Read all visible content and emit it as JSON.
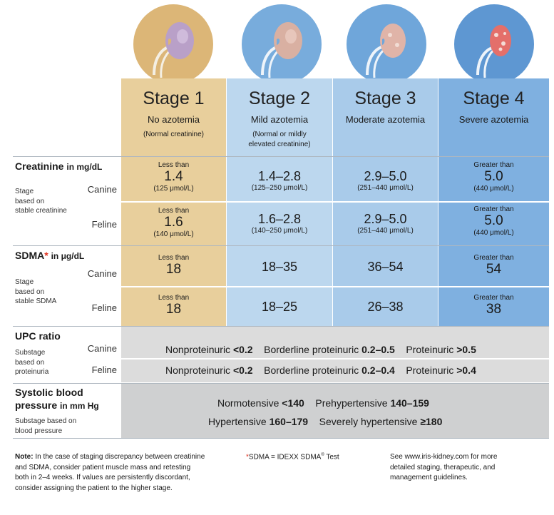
{
  "stages": [
    {
      "title": "Stage 1",
      "subtitle": "No azotemia",
      "note": "(Normal creatinine)"
    },
    {
      "title": "Stage 2",
      "subtitle": "Mild azotemia",
      "note": "(Normal or mildly elevated creatinine)"
    },
    {
      "title": "Stage 3",
      "subtitle": "Moderate azotemia",
      "note": ""
    },
    {
      "title": "Stage 4",
      "subtitle": "Severe azotemia",
      "note": ""
    }
  ],
  "creatinine": {
    "heading": "Creatinine",
    "unit": "in mg/dL",
    "sublabel_1": "Stage",
    "sublabel_2": "based on",
    "sublabel_3": "stable creatinine",
    "canine_label": "Canine",
    "feline_label": "Feline",
    "canine": [
      {
        "pre": "Less than",
        "value": "1.4",
        "unit": "(125 μmol/L)"
      },
      {
        "pre": "",
        "value": "1.4–2.8",
        "unit": "(125–250 μmol/L)"
      },
      {
        "pre": "",
        "value": "2.9–5.0",
        "unit": "(251–440 μmol/L)"
      },
      {
        "pre": "Greater than",
        "value": "5.0",
        "unit": "(440 μmol/L)"
      }
    ],
    "feline": [
      {
        "pre": "Less than",
        "value": "1.6",
        "unit": "(140 μmol/L)"
      },
      {
        "pre": "",
        "value": "1.6–2.8",
        "unit": "(140–250 μmol/L)"
      },
      {
        "pre": "",
        "value": "2.9–5.0",
        "unit": "(251–440 μmol/L)"
      },
      {
        "pre": "Greater than",
        "value": "5.0",
        "unit": "(440 μmol/L)"
      }
    ]
  },
  "sdma": {
    "heading": "SDMA",
    "asterisk": "*",
    "unit": "in μg/dL",
    "sublabel_1": "Stage",
    "sublabel_2": "based on",
    "sublabel_3": "stable SDMA",
    "canine_label": "Canine",
    "feline_label": "Feline",
    "canine": [
      {
        "pre": "Less than",
        "value": "18"
      },
      {
        "pre": "",
        "value": "18–35"
      },
      {
        "pre": "",
        "value": "36–54"
      },
      {
        "pre": "Greater than",
        "value": "54"
      }
    ],
    "feline": [
      {
        "pre": "Less than",
        "value": "18"
      },
      {
        "pre": "",
        "value": "18–25"
      },
      {
        "pre": "",
        "value": "26–38"
      },
      {
        "pre": "Greater than",
        "value": "38"
      }
    ]
  },
  "upc": {
    "heading": "UPC ratio",
    "sublabel_1": "Substage",
    "sublabel_2": "based on",
    "sublabel_3": "proteinuria",
    "canine_label": "Canine",
    "feline_label": "Feline",
    "canine": {
      "nonpro": "Nonproteinuric",
      "nonpro_val": "<0.2",
      "border": "Borderline proteinuric",
      "border_val": "0.2–0.5",
      "pro": "Proteinuric",
      "pro_val": ">0.5"
    },
    "feline": {
      "nonpro": "Nonproteinuric",
      "nonpro_val": "<0.2",
      "border": "Borderline proteinuric",
      "border_val": "0.2–0.4",
      "pro": "Proteinuric",
      "pro_val": ">0.4"
    }
  },
  "bp": {
    "heading_1": "Systolic blood",
    "heading_2": "pressure",
    "heading_unit": "in mm Hg",
    "sublabel_1": "Substage based on",
    "sublabel_2": "blood pressure",
    "normo": "Normotensive",
    "normo_val": "<140",
    "prehyper": "Prehypertensive",
    "prehyper_val": "140–159",
    "hyper": "Hypertensive",
    "hyper_val": "160–179",
    "severe": "Severely hypertensive",
    "severe_val": "≥180"
  },
  "footer": {
    "note_label": "Note:",
    "note_text_1": " In the case of staging discrepancy between creatinine",
    "note_text_2": "and SDMA, consider patient muscle mass and retesting",
    "note_text_3": "both in 2–4 weeks. If values are persistently discordant,",
    "note_text_4": "consider assigning the patient to the higher stage.",
    "sdma_asterisk": "*",
    "sdma_text": "SDMA = IDEXX SDMA",
    "sdma_reg": "®",
    "sdma_test": " Test",
    "iris_1": "See www.iris-kidney.com for more",
    "iris_2": "detailed staging, therapeutic, and",
    "iris_3": "management guidelines."
  },
  "colors": {
    "stage1": "#e8cf9c",
    "stage2": "#bcd7ee",
    "stage3": "#a9cbea",
    "stage4": "#7fb0e0",
    "asterisk": "#e0301e"
  }
}
